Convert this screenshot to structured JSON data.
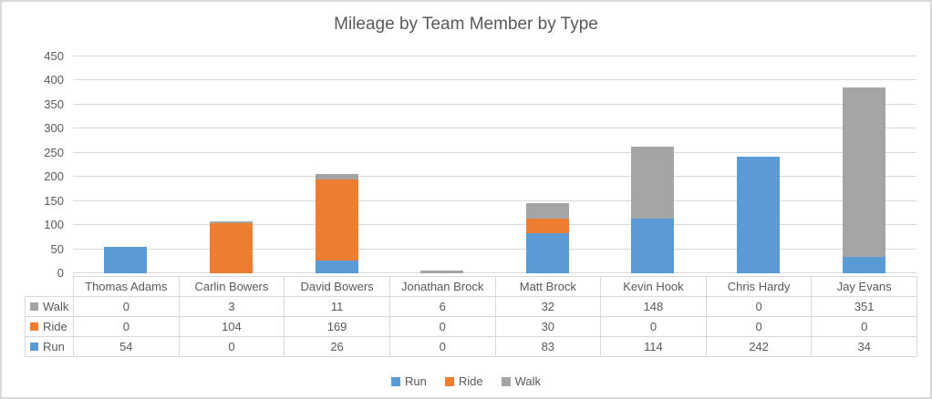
{
  "title": "Mileage by Team Member by Type",
  "chart_data": {
    "type": "bar",
    "stacked": true,
    "title": "Mileage by Team Member by Type",
    "categories": [
      "Thomas Adams",
      "Carlin Bowers",
      "David Bowers",
      "Jonathan Brock",
      "Matt Brock",
      "Kevin Hook",
      "Chris Hardy",
      "Jay Evans"
    ],
    "series": [
      {
        "name": "Run",
        "color": "#5B9BD5",
        "values": [
          54,
          0,
          26,
          0,
          83,
          114,
          242,
          34
        ]
      },
      {
        "name": "Ride",
        "color": "#ED7D31",
        "values": [
          0,
          104,
          169,
          0,
          30,
          0,
          0,
          0
        ]
      },
      {
        "name": "Walk",
        "color": "#A5A5A5",
        "values": [
          0,
          3,
          11,
          6,
          32,
          148,
          0,
          351
        ]
      }
    ],
    "ylabel": "",
    "xlabel": "",
    "ylim": [
      0,
      450
    ],
    "yticks": [
      0,
      50,
      100,
      150,
      200,
      250,
      300,
      350,
      400,
      450
    ],
    "grid": true,
    "legend_position": "bottom",
    "legend_items": [
      "Run",
      "Ride",
      "Walk"
    ],
    "data_table": {
      "visible": true,
      "row_order": [
        "Walk",
        "Ride",
        "Run"
      ]
    }
  },
  "styles": {
    "text_color": "#595959",
    "grid_color": "#D9D9D9",
    "frame_border_color": "#D9D9D9",
    "background": "#FFFFFF"
  }
}
